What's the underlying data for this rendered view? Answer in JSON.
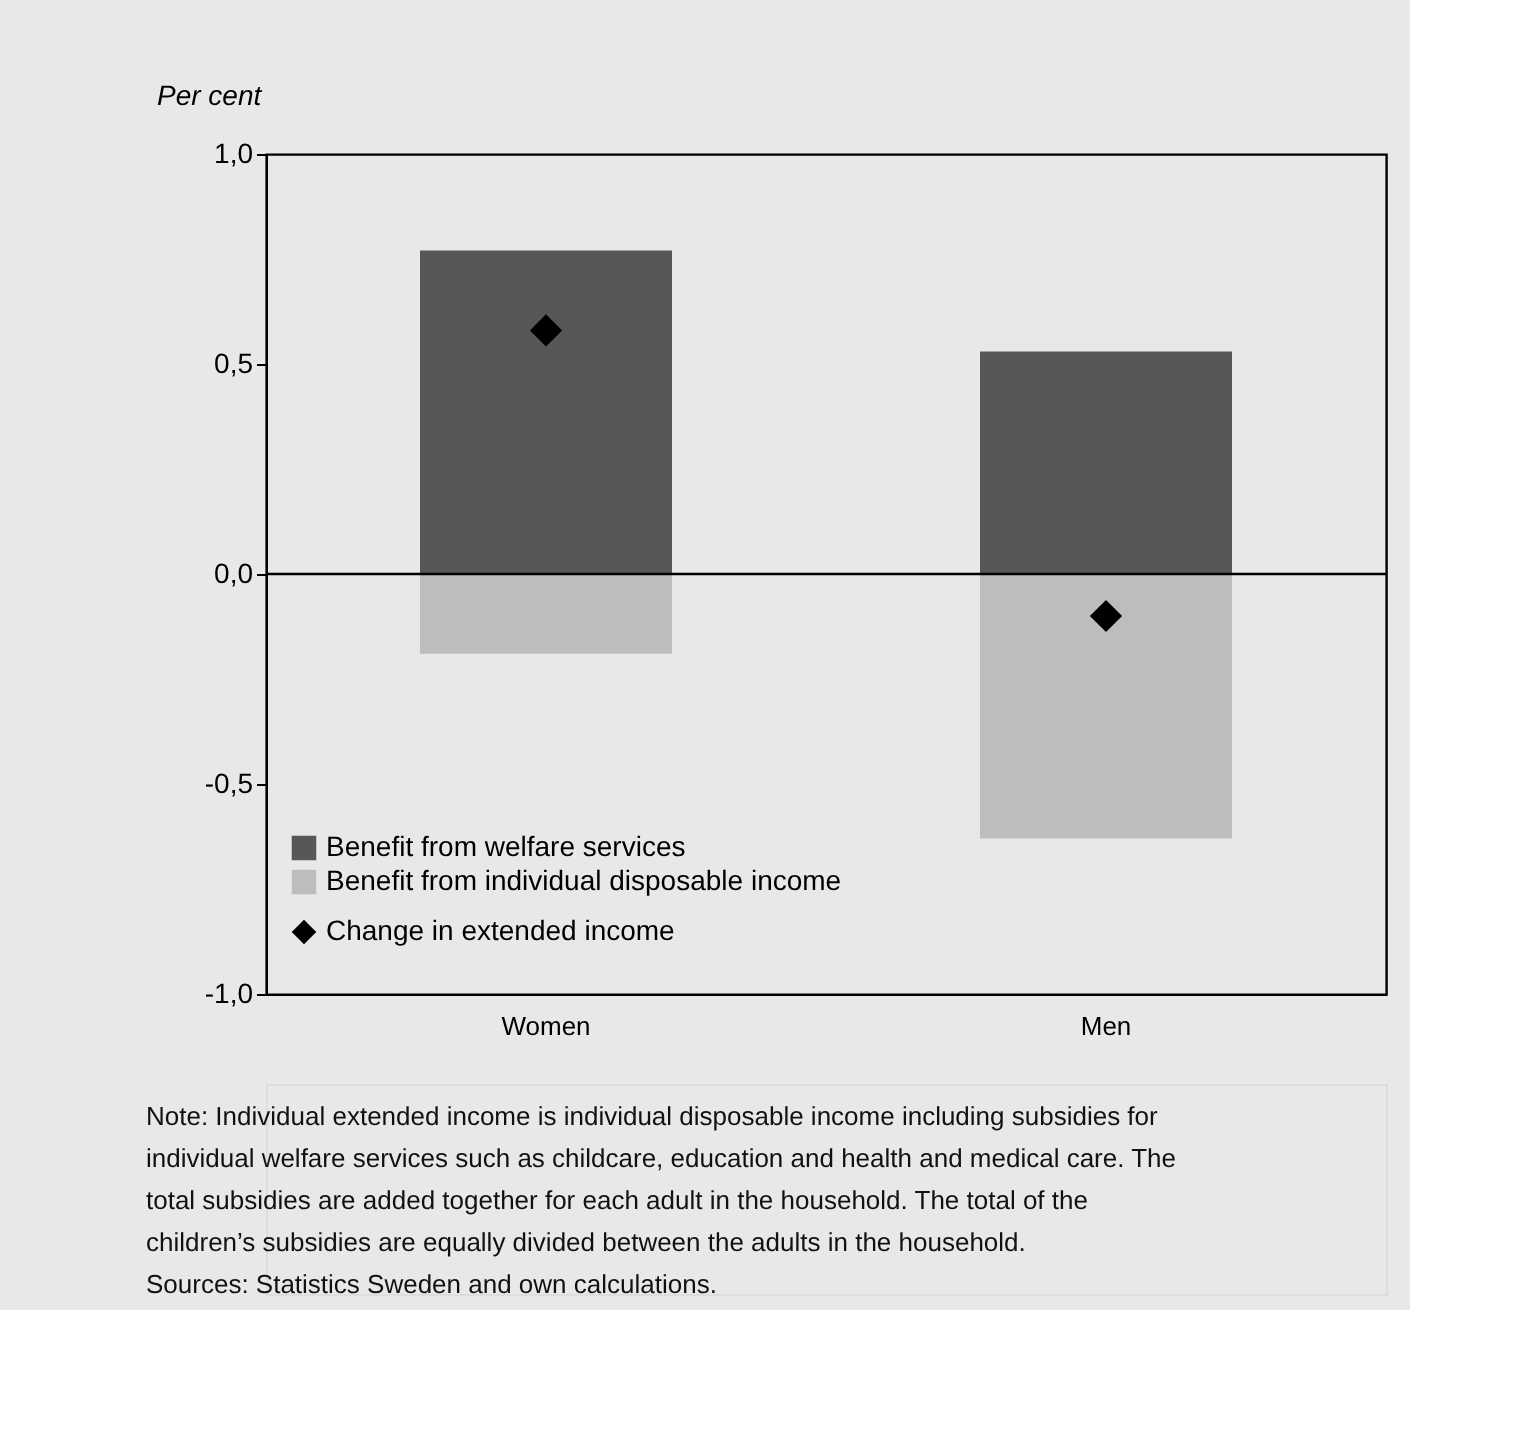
{
  "chart_data": {
    "type": "bar",
    "stacked": true,
    "ylabel": "Per cent",
    "categories": [
      "Women",
      "Men"
    ],
    "series": [
      {
        "name": "Benefit from welfare services",
        "color": "#575757",
        "values": [
          0.77,
          0.53
        ]
      },
      {
        "name": "Benefit from individual disposable income",
        "color": "#bdbdbd",
        "values": [
          -0.19,
          -0.63
        ]
      },
      {
        "name": "Change in extended income",
        "type": "scatter",
        "marker": "diamond",
        "color": "#000000",
        "x": [
          "Women",
          "Men"
        ],
        "values": [
          0.58,
          -0.1
        ]
      }
    ],
    "ylim": [
      -1.0,
      1.0
    ],
    "yticks": [
      {
        "value": -1.0,
        "label": "-1,0"
      },
      {
        "value": -0.5,
        "label": "-0,5"
      },
      {
        "value": 0.0,
        "label": "0,0"
      },
      {
        "value": 0.5,
        "label": "0,5"
      },
      {
        "value": 1.0,
        "label": "1,0"
      }
    ],
    "ref_lines": [
      {
        "axis": "y",
        "value": 0,
        "color": "#000000"
      }
    ],
    "grid": false,
    "legend": "bottom left",
    "annotations": [
      "Note: Individual extended income is individual disposable income including subsidies for individual welfare services such as childcare, education and health and medical care. The total subsidies are added together for each adult in the household. The total of the children’s subsidies are equally divided between the adults in the household.",
      "Sources: Statistics Sweden and own calculations."
    ]
  }
}
